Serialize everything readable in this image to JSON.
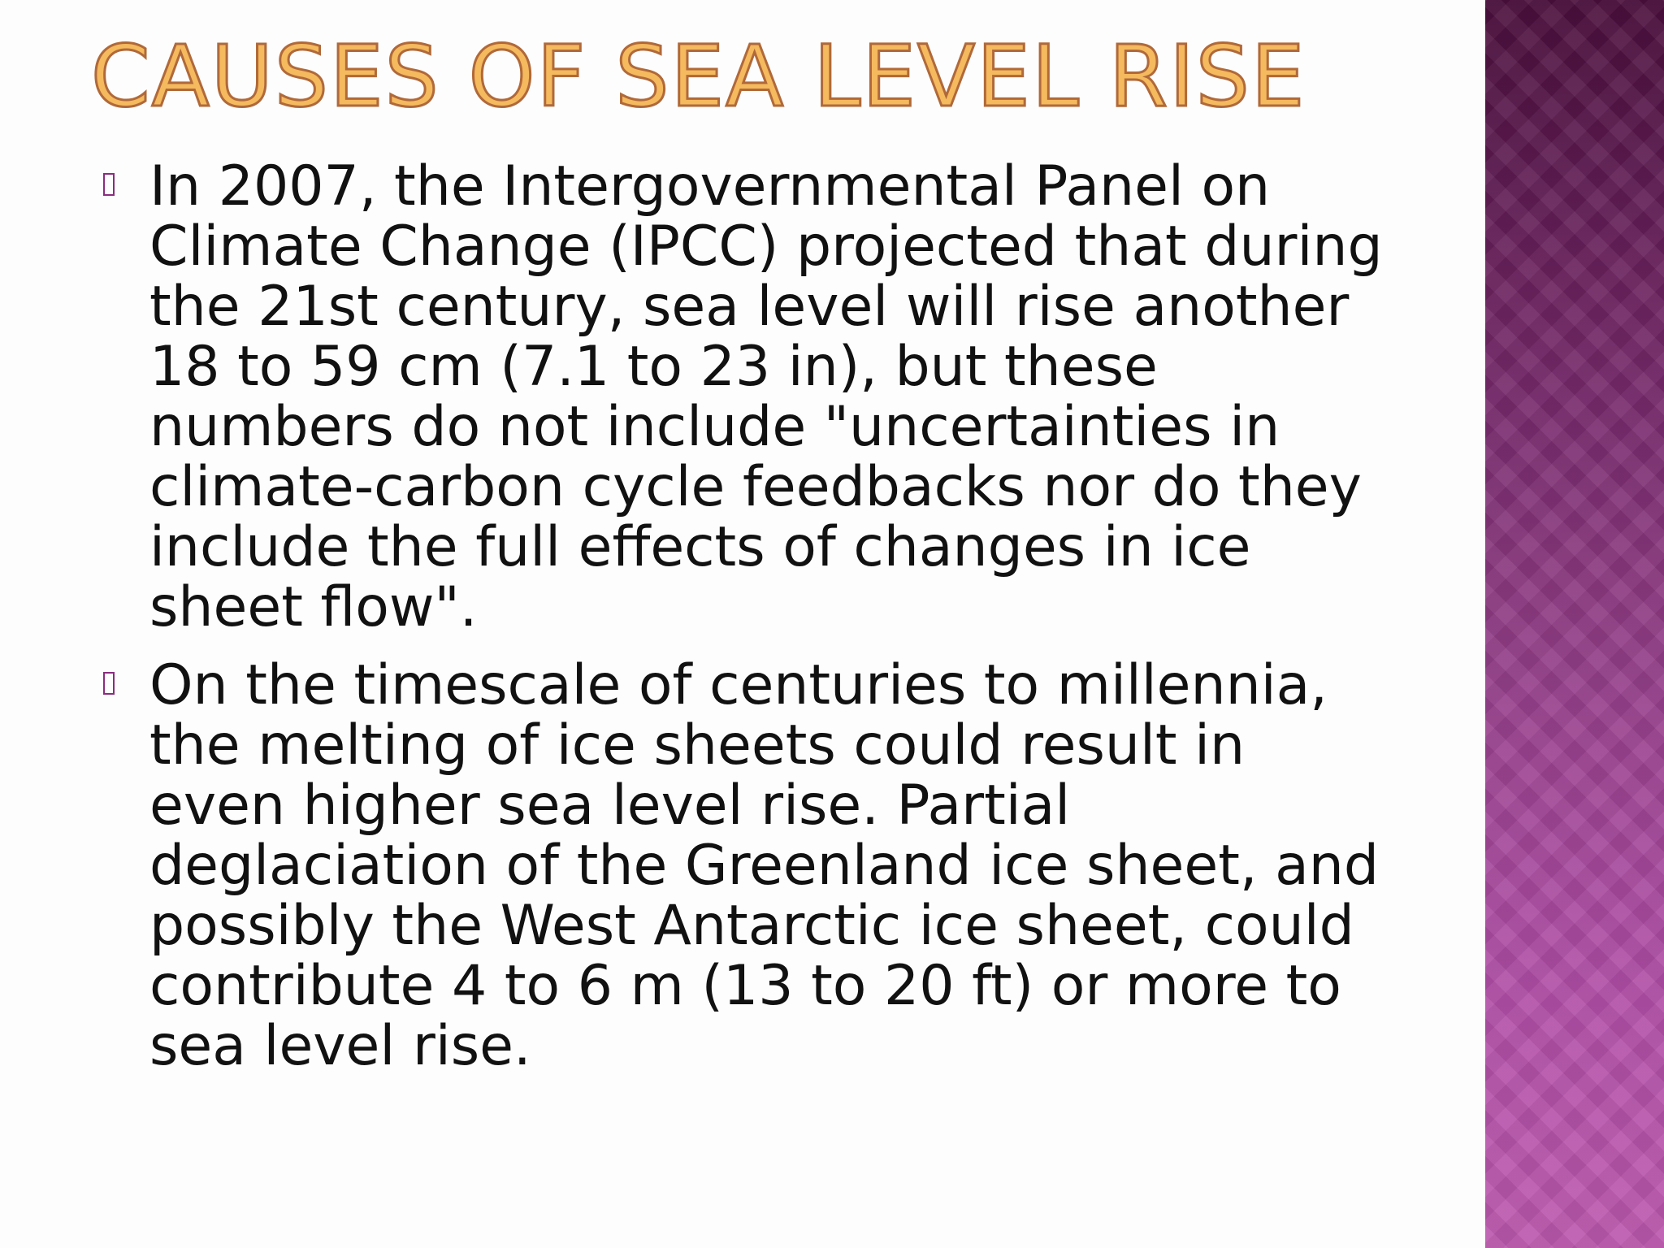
{
  "slide": {
    "title": "Causes of Sea Level Rise",
    "bullets": [
      {
        "text": "In 2007, the Intergovernmental Panel on Climate Change (IPCC) projected that during the 21st century, sea level will rise another 18 to 59 cm (7.1 to 23 in), but these numbers do not include \"uncertainties in climate-carbon cycle feedbacks nor do they include the full effects of changes in ice sheet flow\"."
      },
      {
        "text": "On the timescale of centuries to millennia, the melting of ice sheets could result in even higher sea level rise. Partial deglaciation of the Greenland ice sheet, and possibly the West Antarctic ice sheet, could contribute 4 to 6 m (13 to 20 ft) or more to sea level rise."
      }
    ]
  },
  "colors": {
    "title_fill": "#f5b95e",
    "title_outline": "#b0693a",
    "bullet_marker": "#8b2b7f",
    "side_panel_top": "#4a0f3c",
    "side_panel_bottom": "#bb58ad"
  }
}
